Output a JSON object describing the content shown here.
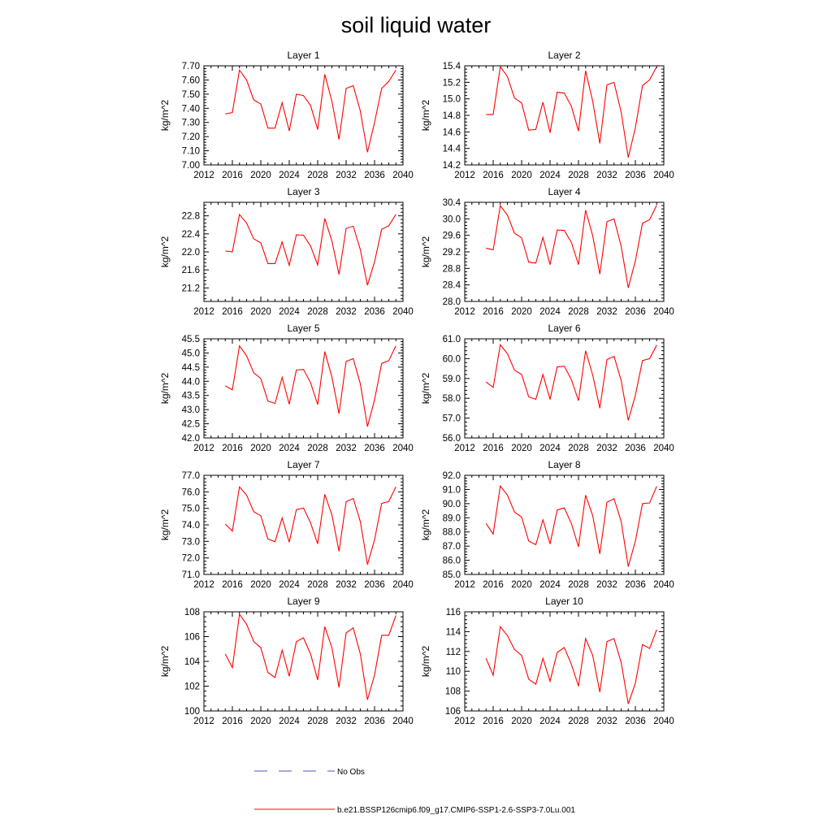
{
  "figure": {
    "title": "soil liquid water",
    "legend": [
      {
        "label": "No Obs",
        "color": "#4a55c8",
        "style": "dashed"
      },
      {
        "label": "b.e21.BSSP126cmip6.f09_g17.CMIP6-SSP1-2.6-SSP3-7.0Lu.001",
        "color": "#ff0000",
        "style": "solid"
      }
    ]
  },
  "chart_data": [
    {
      "type": "line",
      "title": "Layer 1",
      "ylabel": "kg/m^2",
      "xlim": [
        2012,
        2040
      ],
      "xticks": [
        2012,
        2016,
        2020,
        2024,
        2028,
        2032,
        2036,
        2040
      ],
      "ylim": [
        7.0,
        7.7
      ],
      "yticks": [
        7.0,
        7.1,
        7.2,
        7.3,
        7.4,
        7.5,
        7.6,
        7.7
      ],
      "ytick_labels": [
        "7.00",
        "7.10",
        "7.20",
        "7.30",
        "7.40",
        "7.50",
        "7.60",
        "7.70"
      ],
      "series": [
        {
          "color": "#ff0000",
          "x": [
            2015,
            2016,
            2017,
            2018,
            2019,
            2020,
            2021,
            2022,
            2023,
            2024,
            2025,
            2026,
            2027,
            2028,
            2029,
            2030,
            2031,
            2032,
            2033,
            2034,
            2035,
            2036,
            2037,
            2038,
            2039
          ],
          "y": [
            7.36,
            7.37,
            7.67,
            7.6,
            7.46,
            7.43,
            7.26,
            7.26,
            7.44,
            7.24,
            7.5,
            7.49,
            7.42,
            7.25,
            7.64,
            7.45,
            7.18,
            7.54,
            7.56,
            7.38,
            7.09,
            7.3,
            7.54,
            7.59,
            7.67
          ]
        }
      ]
    },
    {
      "type": "line",
      "title": "Layer 2",
      "ylabel": "kg/m^2",
      "xlim": [
        2012,
        2040
      ],
      "xticks": [
        2012,
        2016,
        2020,
        2024,
        2028,
        2032,
        2036,
        2040
      ],
      "ylim": [
        14.2,
        15.4
      ],
      "yticks": [
        14.2,
        14.4,
        14.6,
        14.8,
        15.0,
        15.2,
        15.4
      ],
      "ytick_labels": [
        "14.2",
        "14.4",
        "14.6",
        "14.8",
        "15.0",
        "15.2",
        "15.4"
      ],
      "series": [
        {
          "color": "#ff0000",
          "x": [
            2015,
            2016,
            2017,
            2018,
            2019,
            2020,
            2021,
            2022,
            2023,
            2024,
            2025,
            2026,
            2027,
            2028,
            2029,
            2030,
            2031,
            2032,
            2033,
            2034,
            2035,
            2036,
            2037,
            2038,
            2039
          ],
          "y": [
            14.81,
            14.81,
            15.39,
            15.27,
            15.01,
            14.95,
            14.62,
            14.63,
            14.96,
            14.59,
            15.08,
            15.07,
            14.91,
            14.61,
            15.34,
            14.97,
            14.46,
            15.17,
            15.2,
            14.84,
            14.29,
            14.65,
            15.16,
            15.23,
            15.39
          ]
        }
      ]
    },
    {
      "type": "line",
      "title": "Layer 3",
      "ylabel": "kg/m^2",
      "xlim": [
        2012,
        2040
      ],
      "xticks": [
        2012,
        2016,
        2020,
        2024,
        2028,
        2032,
        2036,
        2040
      ],
      "ylim": [
        20.9,
        23.1
      ],
      "yticks": [
        21.2,
        21.6,
        22.0,
        22.4,
        22.8
      ],
      "ytick_labels": [
        "21.2",
        "21.6",
        "22.0",
        "22.4",
        "22.8"
      ],
      "series": [
        {
          "color": "#ff0000",
          "x": [
            2015,
            2016,
            2017,
            2018,
            2019,
            2020,
            2021,
            2022,
            2023,
            2024,
            2025,
            2026,
            2027,
            2028,
            2029,
            2030,
            2031,
            2032,
            2033,
            2034,
            2035,
            2036,
            2037,
            2038,
            2039
          ],
          "y": [
            22.02,
            22.0,
            22.83,
            22.64,
            22.29,
            22.2,
            21.74,
            21.74,
            22.22,
            21.7,
            22.38,
            22.37,
            22.13,
            21.71,
            22.74,
            22.24,
            21.5,
            22.52,
            22.57,
            22.05,
            21.26,
            21.78,
            22.5,
            22.58,
            22.83
          ]
        }
      ]
    },
    {
      "type": "line",
      "title": "Layer 4",
      "ylabel": "kg/m^2",
      "xlim": [
        2012,
        2040
      ],
      "xticks": [
        2012,
        2016,
        2020,
        2024,
        2028,
        2032,
        2036,
        2040
      ],
      "ylim": [
        28.0,
        30.4
      ],
      "yticks": [
        28.0,
        28.4,
        28.8,
        29.2,
        29.6,
        30.0,
        30.4
      ],
      "ytick_labels": [
        "28.0",
        "28.4",
        "28.8",
        "29.2",
        "29.6",
        "30.0",
        "30.4"
      ],
      "series": [
        {
          "color": "#ff0000",
          "x": [
            2015,
            2016,
            2017,
            2018,
            2019,
            2020,
            2021,
            2022,
            2023,
            2024,
            2025,
            2026,
            2027,
            2028,
            2029,
            2030,
            2031,
            2032,
            2033,
            2034,
            2035,
            2036,
            2037,
            2038,
            2039
          ],
          "y": [
            29.29,
            29.25,
            30.32,
            30.09,
            29.65,
            29.54,
            28.95,
            28.93,
            29.55,
            28.89,
            29.73,
            29.72,
            29.43,
            28.89,
            30.21,
            29.59,
            28.66,
            29.93,
            30.0,
            29.34,
            28.33,
            28.98,
            29.89,
            29.98,
            30.33
          ]
        }
      ]
    },
    {
      "type": "line",
      "title": "Layer 5",
      "ylabel": "kg/m^2",
      "xlim": [
        2012,
        2040
      ],
      "xticks": [
        2012,
        2016,
        2020,
        2024,
        2028,
        2032,
        2036,
        2040
      ],
      "ylim": [
        42.0,
        45.5
      ],
      "yticks": [
        42.0,
        42.5,
        43.0,
        43.5,
        44.0,
        44.5,
        45.0,
        45.5
      ],
      "ytick_labels": [
        "42.0",
        "42.5",
        "43.0",
        "43.5",
        "44.0",
        "44.5",
        "45.0",
        "45.5"
      ],
      "series": [
        {
          "color": "#ff0000",
          "x": [
            2015,
            2016,
            2017,
            2018,
            2019,
            2020,
            2021,
            2022,
            2023,
            2024,
            2025,
            2026,
            2027,
            2028,
            2029,
            2030,
            2031,
            2032,
            2033,
            2034,
            2035,
            2036,
            2037,
            2038,
            2039
          ],
          "y": [
            43.84,
            43.7,
            45.25,
            44.9,
            44.3,
            44.1,
            43.3,
            43.22,
            44.14,
            43.19,
            44.4,
            44.42,
            43.95,
            43.18,
            45.05,
            44.15,
            42.86,
            44.7,
            44.8,
            43.91,
            42.4,
            43.35,
            44.63,
            44.73,
            45.25
          ]
        }
      ]
    },
    {
      "type": "line",
      "title": "Layer 6",
      "ylabel": "kg/m^2",
      "xlim": [
        2012,
        2040
      ],
      "xticks": [
        2012,
        2016,
        2020,
        2024,
        2028,
        2032,
        2036,
        2040
      ],
      "ylim": [
        56.0,
        61.0
      ],
      "yticks": [
        56.0,
        57.0,
        58.0,
        59.0,
        60.0,
        61.0
      ],
      "ytick_labels": [
        "56.0",
        "57.0",
        "58.0",
        "59.0",
        "60.0",
        "61.0"
      ],
      "series": [
        {
          "color": "#ff0000",
          "x": [
            2015,
            2016,
            2017,
            2018,
            2019,
            2020,
            2021,
            2022,
            2023,
            2024,
            2025,
            2026,
            2027,
            2028,
            2029,
            2030,
            2031,
            2032,
            2033,
            2034,
            2035,
            2036,
            2037,
            2038,
            2039
          ],
          "y": [
            58.82,
            58.55,
            60.7,
            60.25,
            59.42,
            59.2,
            58.07,
            57.95,
            59.2,
            57.94,
            59.58,
            59.62,
            58.94,
            57.88,
            60.4,
            59.17,
            57.5,
            59.95,
            60.12,
            58.9,
            56.88,
            58.15,
            59.9,
            60.0,
            60.68
          ]
        }
      ]
    },
    {
      "type": "line",
      "title": "Layer 7",
      "ylabel": "kg/m^2",
      "xlim": [
        2012,
        2040
      ],
      "xticks": [
        2012,
        2016,
        2020,
        2024,
        2028,
        2032,
        2036,
        2040
      ],
      "ylim": [
        71.0,
        77.0
      ],
      "yticks": [
        71.0,
        72.0,
        73.0,
        74.0,
        75.0,
        76.0,
        77.0
      ],
      "ytick_labels": [
        "71.0",
        "72.0",
        "73.0",
        "74.0",
        "75.0",
        "76.0",
        "77.0"
      ],
      "series": [
        {
          "color": "#ff0000",
          "x": [
            2015,
            2016,
            2017,
            2018,
            2019,
            2020,
            2021,
            2022,
            2023,
            2024,
            2025,
            2026,
            2027,
            2028,
            2029,
            2030,
            2031,
            2032,
            2033,
            2034,
            2035,
            2036,
            2037,
            2038,
            2039
          ],
          "y": [
            74.05,
            73.62,
            76.3,
            75.8,
            74.8,
            74.55,
            73.15,
            72.98,
            74.42,
            72.95,
            74.92,
            75.02,
            74.12,
            72.85,
            75.85,
            74.6,
            72.4,
            75.4,
            75.6,
            74.2,
            71.6,
            73.1,
            75.3,
            75.42,
            76.3
          ]
        }
      ]
    },
    {
      "type": "line",
      "title": "Layer 8",
      "ylabel": "kg/m^2",
      "xlim": [
        2012,
        2040
      ],
      "xticks": [
        2012,
        2016,
        2020,
        2024,
        2028,
        2032,
        2036,
        2040
      ],
      "ylim": [
        85.0,
        92.0
      ],
      "yticks": [
        85.0,
        86.0,
        87.0,
        88.0,
        89.0,
        90.0,
        91.0,
        92.0
      ],
      "ytick_labels": [
        "85.0",
        "86.0",
        "87.0",
        "88.0",
        "89.0",
        "90.0",
        "91.0",
        "92.0"
      ],
      "series": [
        {
          "color": "#ff0000",
          "x": [
            2015,
            2016,
            2017,
            2018,
            2019,
            2020,
            2021,
            2022,
            2023,
            2024,
            2025,
            2026,
            2027,
            2028,
            2029,
            2030,
            2031,
            2032,
            2033,
            2034,
            2035,
            2036,
            2037,
            2038,
            2039
          ],
          "y": [
            88.6,
            87.85,
            91.25,
            90.6,
            89.4,
            89.05,
            87.35,
            87.1,
            88.85,
            87.15,
            89.55,
            89.7,
            88.6,
            86.95,
            90.6,
            89.15,
            86.45,
            90.1,
            90.35,
            88.75,
            85.55,
            87.35,
            90.0,
            90.05,
            91.22
          ]
        }
      ]
    },
    {
      "type": "line",
      "title": "Layer 9",
      "ylabel": "kg/m^2",
      "xlim": [
        2012,
        2040
      ],
      "xticks": [
        2012,
        2016,
        2020,
        2024,
        2028,
        2032,
        2036,
        2040
      ],
      "ylim": [
        100,
        108
      ],
      "yticks": [
        100,
        102,
        104,
        106,
        108
      ],
      "ytick_labels": [
        "100",
        "102",
        "104",
        "106",
        "108"
      ],
      "series": [
        {
          "color": "#ff0000",
          "x": [
            2015,
            2016,
            2017,
            2018,
            2019,
            2020,
            2021,
            2022,
            2023,
            2024,
            2025,
            2026,
            2027,
            2028,
            2029,
            2030,
            2031,
            2032,
            2033,
            2034,
            2035,
            2036,
            2037,
            2038,
            2039
          ],
          "y": [
            104.6,
            103.5,
            107.8,
            107.0,
            105.6,
            105.1,
            103.1,
            102.7,
            104.9,
            102.8,
            105.6,
            105.9,
            104.6,
            102.5,
            106.8,
            105.1,
            101.9,
            106.3,
            106.7,
            104.6,
            100.9,
            102.9,
            106.1,
            106.1,
            107.7
          ]
        }
      ]
    },
    {
      "type": "line",
      "title": "Layer 10",
      "ylabel": "kg/m^2",
      "xlim": [
        2012,
        2040
      ],
      "xticks": [
        2012,
        2016,
        2020,
        2024,
        2028,
        2032,
        2036,
        2040
      ],
      "ylim": [
        106,
        116
      ],
      "yticks": [
        106,
        108,
        110,
        112,
        114,
        116
      ],
      "ytick_labels": [
        "106",
        "108",
        "110",
        "112",
        "114",
        "116"
      ],
      "series": [
        {
          "color": "#ff0000",
          "x": [
            2015,
            2016,
            2017,
            2018,
            2019,
            2020,
            2021,
            2022,
            2023,
            2024,
            2025,
            2026,
            2027,
            2028,
            2029,
            2030,
            2031,
            2032,
            2033,
            2034,
            2035,
            2036,
            2037,
            2038,
            2039
          ],
          "y": [
            111.3,
            109.6,
            114.5,
            113.6,
            112.2,
            111.6,
            109.2,
            108.7,
            111.3,
            109.0,
            111.9,
            112.4,
            110.7,
            108.5,
            113.3,
            111.6,
            107.9,
            113.0,
            113.3,
            110.9,
            106.7,
            108.8,
            112.7,
            112.3,
            114.2
          ]
        }
      ]
    }
  ]
}
